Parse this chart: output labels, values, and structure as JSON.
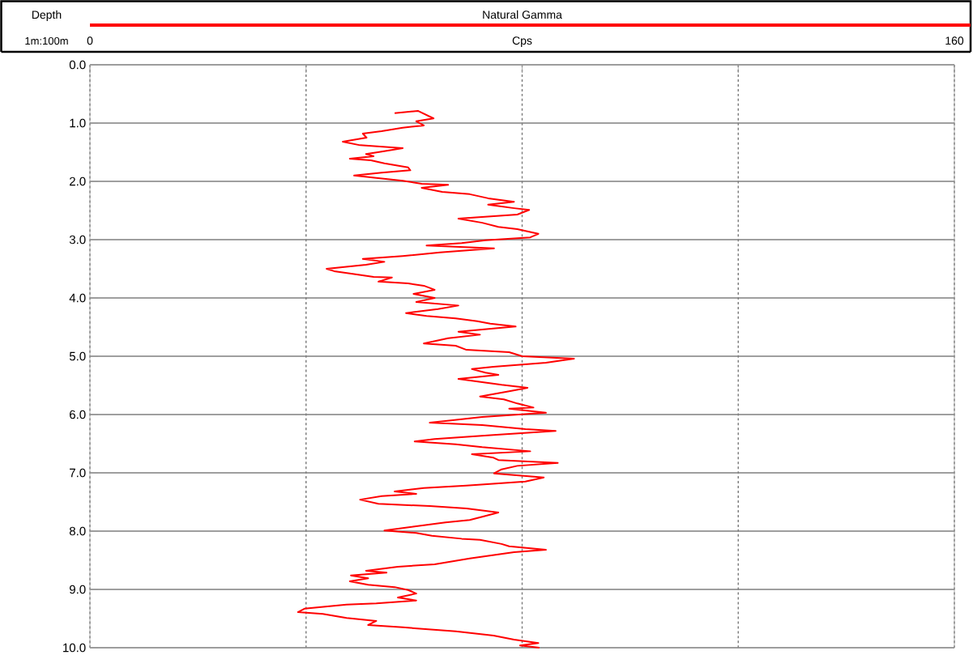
{
  "chart_data": {
    "type": "line",
    "xlabel": "Cps",
    "ylabel": "Depth",
    "annotations": [
      "1m:100m"
    ],
    "xlim": [
      0,
      160
    ],
    "xticks": [
      0,
      {
        "value": 40,
        "label": null
      },
      {
        "value": 80,
        "label": null
      },
      {
        "value": 120,
        "label": null
      },
      160
    ],
    "ylim": [
      10,
      0
    ],
    "yticks": [
      {
        "value": 0,
        "label": "0.0"
      },
      {
        "value": 1,
        "label": "1.0"
      },
      {
        "value": 2,
        "label": "2.0"
      },
      {
        "value": 3,
        "label": "3.0"
      },
      {
        "value": 4,
        "label": "4.0"
      },
      {
        "value": 5,
        "label": "5.0"
      },
      {
        "value": 6,
        "label": "6.0"
      },
      {
        "value": 7,
        "label": "7.0"
      },
      {
        "value": 8,
        "label": "8.0"
      },
      {
        "value": 9,
        "label": "9.0"
      },
      {
        "value": 10,
        "label": "10.0"
      }
    ],
    "grid": true,
    "legend": "top",
    "series": [
      {
        "name": "Natural Gamma",
        "color": "#ff0000",
        "x": [
          56.4,
          60.7,
          63.6,
          60.4,
          61.8,
          57.9,
          54.0,
          50.5,
          51.2,
          46.8,
          50.0,
          57.9,
          54.0,
          51.1,
          52.5,
          48.1,
          52.0,
          54.5,
          58.9,
          59.3,
          54.0,
          48.9,
          53.0,
          57.9,
          61.4,
          66.3,
          61.4,
          65.2,
          70.3,
          73.7,
          78.5,
          73.7,
          78.5,
          81.3,
          79.1,
          68.2,
          72.6,
          75.6,
          79.1,
          83.0,
          81.5,
          73.2,
          68.8,
          62.3,
          74.8,
          64.8,
          57.9,
          50.5,
          54.5,
          51.1,
          43.8,
          45.2,
          48.1,
          52.5,
          55.9,
          53.4,
          58.9,
          61.8,
          63.8,
          59.9,
          63.8,
          60.4,
          68.2,
          64.4,
          58.5,
          62.3,
          67.7,
          71.7,
          74.1,
          78.8,
          72.6,
          68.2,
          72.2,
          66.3,
          61.8,
          67.7,
          69.7,
          77.6,
          80.0,
          89.6,
          84.4,
          74.7,
          70.7,
          73.2,
          75.6,
          68.2,
          76.2,
          81.0,
          77.6,
          72.2,
          76.6,
          79.1,
          82.1,
          77.6,
          84.4,
          72.6,
          65.8,
          62.9,
          72.6,
          80.6,
          86.2,
          74.7,
          63.8,
          60.1,
          67.7,
          72.6,
          81.5,
          70.7,
          74.7,
          75.6,
          86.6,
          79.1,
          76.2,
          74.8,
          84.0,
          80.6,
          69.7,
          61.8,
          56.4,
          60.4,
          54.0,
          50.0,
          53.4,
          62.9,
          69.7,
          75.6,
          73.2,
          70.3,
          65.8,
          54.5,
          60.4,
          63.3,
          68.8,
          72.2,
          76.2,
          77.6,
          84.4,
          78.5,
          70.3,
          63.8,
          57.0,
          51.1,
          54.9,
          48.3,
          51.5,
          48.1,
          51.5,
          56.4,
          58.9,
          60.4,
          57.0,
          60.4,
          53.0,
          47.5,
          39.7,
          38.5,
          43.1,
          47.5,
          53.0,
          51.5,
          57.9,
          67.7,
          74.7,
          78.5,
          83.0,
          79.6,
          83.2
        ],
        "values": [
          0.83,
          0.79,
          0.92,
          0.97,
          1.04,
          1.08,
          1.14,
          1.18,
          1.25,
          1.32,
          1.38,
          1.43,
          1.49,
          1.53,
          1.57,
          1.61,
          1.64,
          1.69,
          1.76,
          1.81,
          1.85,
          1.9,
          1.94,
          1.99,
          2.04,
          2.06,
          2.11,
          2.18,
          2.22,
          2.29,
          2.35,
          2.4,
          2.46,
          2.49,
          2.57,
          2.64,
          2.71,
          2.78,
          2.82,
          2.9,
          2.96,
          3.01,
          3.06,
          3.1,
          3.15,
          3.22,
          3.28,
          3.33,
          3.38,
          3.43,
          3.5,
          3.54,
          3.58,
          3.64,
          3.65,
          3.72,
          3.75,
          3.79,
          3.86,
          3.93,
          4.0,
          4.07,
          4.13,
          4.19,
          4.26,
          4.31,
          4.35,
          4.4,
          4.44,
          4.49,
          4.54,
          4.58,
          4.63,
          4.69,
          4.78,
          4.82,
          4.89,
          4.93,
          5.0,
          5.04,
          5.11,
          5.18,
          5.22,
          5.28,
          5.32,
          5.39,
          5.49,
          5.54,
          5.6,
          5.69,
          5.74,
          5.81,
          5.88,
          5.9,
          5.97,
          6.04,
          6.11,
          6.14,
          6.18,
          6.25,
          6.28,
          6.35,
          6.42,
          6.46,
          6.51,
          6.56,
          6.63,
          6.68,
          6.74,
          6.78,
          6.83,
          6.88,
          6.94,
          7.01,
          7.08,
          7.15,
          7.22,
          7.26,
          7.32,
          7.36,
          7.4,
          7.46,
          7.53,
          7.57,
          7.61,
          7.68,
          7.74,
          7.81,
          7.85,
          7.99,
          8.03,
          8.08,
          8.13,
          8.15,
          8.22,
          8.26,
          8.32,
          8.36,
          8.47,
          8.57,
          8.61,
          8.68,
          8.71,
          8.76,
          8.81,
          8.86,
          8.92,
          8.96,
          9.01,
          9.07,
          9.14,
          9.19,
          9.24,
          9.26,
          9.33,
          9.39,
          9.42,
          9.49,
          9.54,
          9.61,
          9.65,
          9.72,
          9.79,
          9.86,
          9.92,
          9.96,
          10.0
        ]
      }
    ]
  }
}
